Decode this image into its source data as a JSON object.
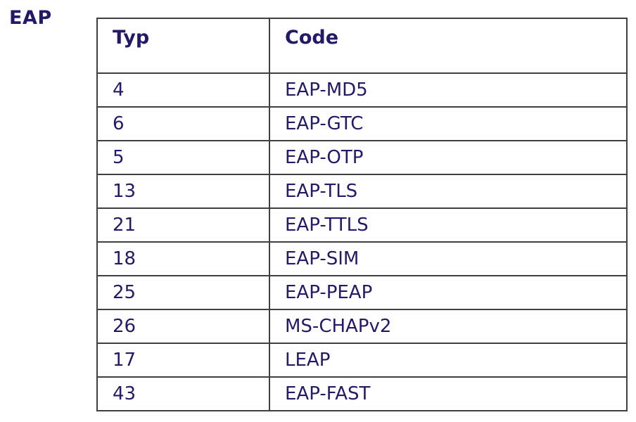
{
  "page": {
    "label": "EAP"
  },
  "table": {
    "headers": {
      "typ": "Typ",
      "code": "Code"
    },
    "rows": [
      [
        "4",
        "EAP-MD5"
      ],
      [
        "6",
        "EAP-GTC"
      ],
      [
        "5",
        "EAP-OTP"
      ],
      [
        "13",
        "EAP-TLS"
      ],
      [
        "21",
        "EAP-TTLS"
      ],
      [
        "18",
        "EAP-SIM"
      ],
      [
        "25",
        "EAP-PEAP"
      ],
      [
        "26",
        "MS-CHAPv2"
      ],
      [
        "17",
        "LEAP"
      ],
      [
        "43",
        "EAP-FAST"
      ]
    ]
  },
  "colors": {
    "text": "#221a67",
    "border": "#3f3f3f",
    "background": "#ffffff"
  }
}
